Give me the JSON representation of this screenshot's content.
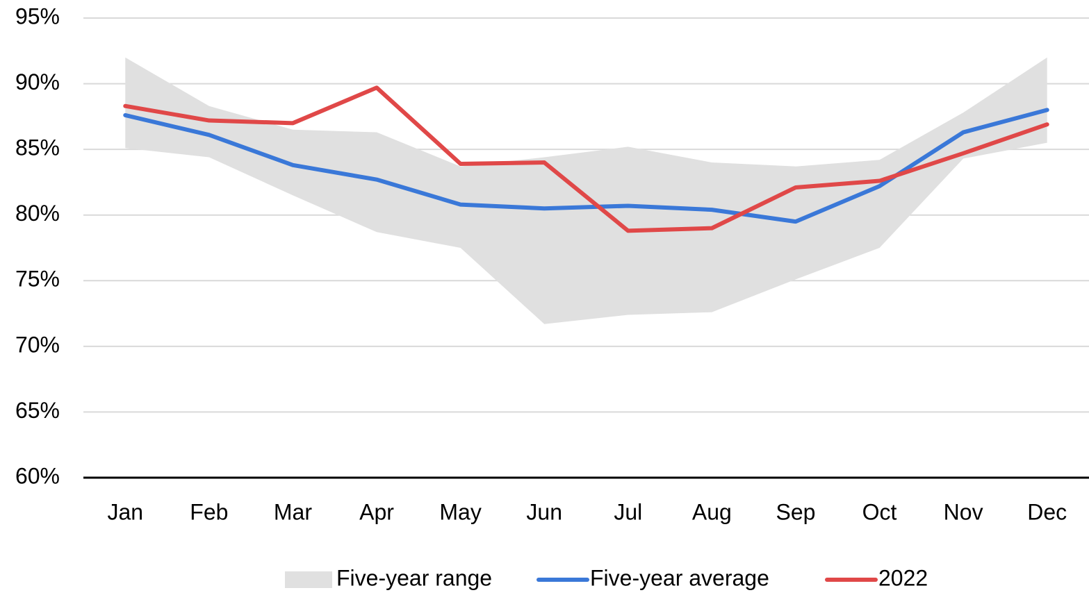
{
  "chart_data": {
    "type": "line",
    "categories": [
      "Jan",
      "Feb",
      "Mar",
      "Apr",
      "May",
      "Jun",
      "Jul",
      "Aug",
      "Sep",
      "Oct",
      "Nov",
      "Dec"
    ],
    "ylim": [
      60,
      95
    ],
    "yticks": [
      {
        "value": 60,
        "label": "60%"
      },
      {
        "value": 65,
        "label": "65%"
      },
      {
        "value": 70,
        "label": "70%"
      },
      {
        "value": 75,
        "label": "75%"
      },
      {
        "value": 80,
        "label": "80%"
      },
      {
        "value": 85,
        "label": "85%"
      },
      {
        "value": 90,
        "label": "90%"
      },
      {
        "value": 95,
        "label": "95%"
      }
    ],
    "grid": true,
    "legend": "bottom",
    "series": [
      {
        "name": "Five-year range",
        "color": "#e0e0e0",
        "low": [
          85.1,
          84.4,
          81.5,
          78.7,
          77.5,
          71.7,
          72.4,
          72.6,
          75.1,
          77.5,
          84.3,
          85.5
        ],
        "high": [
          92.0,
          88.3,
          86.5,
          86.3,
          83.7,
          84.4,
          85.2,
          84.0,
          83.7,
          84.2,
          87.8,
          92.0
        ]
      },
      {
        "name": "Five-year average",
        "color": "#3a78d8",
        "values": [
          87.6,
          86.1,
          83.8,
          82.7,
          80.8,
          80.5,
          80.7,
          80.4,
          79.5,
          82.2,
          86.3,
          88.0
        ]
      },
      {
        "name": "2022",
        "color": "#e04848",
        "values": [
          88.3,
          87.2,
          87.0,
          89.7,
          83.9,
          84.0,
          78.8,
          79.0,
          82.1,
          82.6,
          84.7,
          86.9
        ]
      }
    ]
  }
}
